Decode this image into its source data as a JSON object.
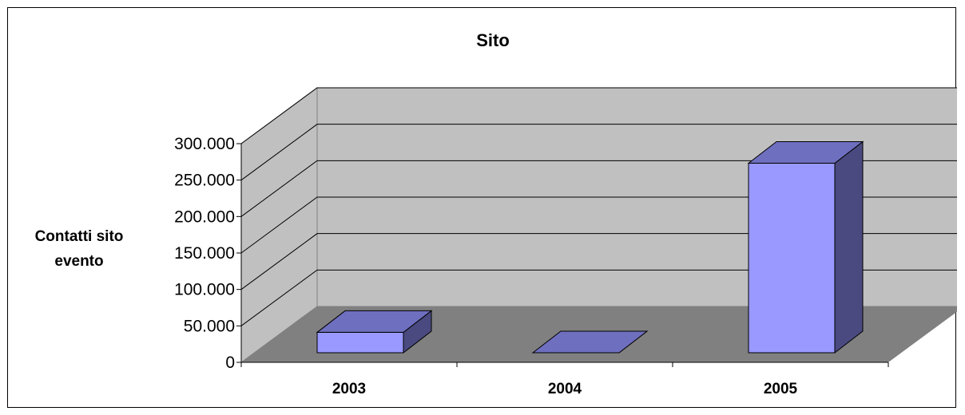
{
  "chart_data": {
    "type": "bar",
    "title": "Sito",
    "ylabel": [
      "Contatti sito",
      "evento"
    ],
    "xlabel": "",
    "categories": [
      "2003",
      "2004",
      "2005"
    ],
    "values": [
      28000,
      0,
      260000
    ],
    "ylim": [
      0,
      300000
    ],
    "yticks": [
      "0",
      "50.000",
      "100.000",
      "150.000",
      "200.000",
      "250.000",
      "300.000"
    ],
    "grid": true,
    "legend": "none",
    "colors": {
      "bar_front": "#9999ff",
      "bar_top": "#6f6fc0",
      "bar_side": "#4a4a80",
      "back_wall": "#c0c0c0",
      "side_wall": "#c0c0c0",
      "floor": "#808080",
      "grid": "#000000"
    }
  }
}
